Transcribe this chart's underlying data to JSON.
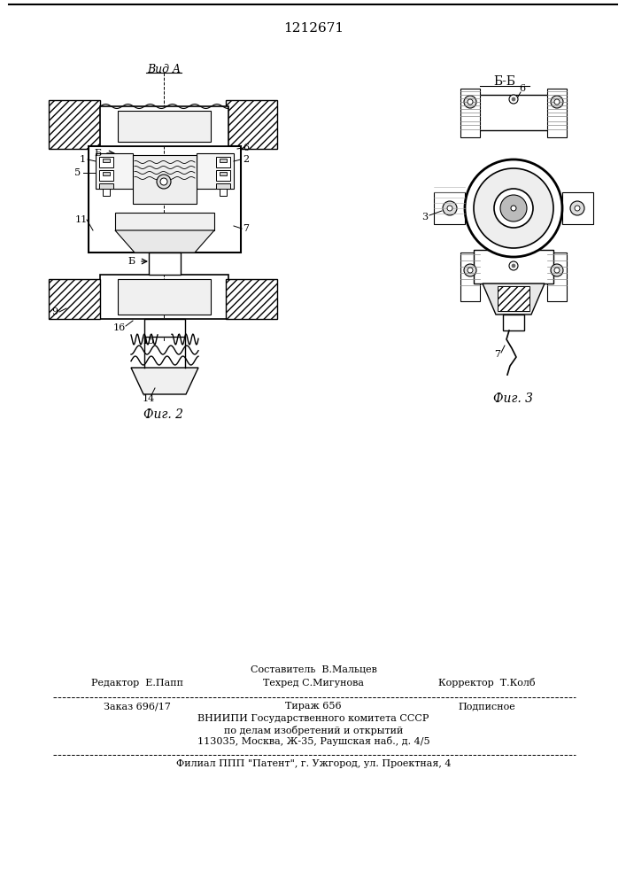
{
  "patent_number": "1212671",
  "background_color": "#ffffff",
  "text_color": "#000000",
  "fig2_caption": "Фиг. 2",
  "fig3_caption": "Фиг. 3",
  "view_a_label": "Вид A",
  "bb_label": "Б-Б",
  "footer_composer": "Составитель  В.Мальцев",
  "footer_line1_left": "Редактор  Е.Папп",
  "footer_line1_center": "Техред С.Мигунова",
  "footer_line1_right": "Корректор  Т.Колб",
  "footer_line2_left": "Заказ 696/17",
  "footer_line2_center": "Тираж 656",
  "footer_line2_right": "Подписное",
  "footer_line3": "ВНИИПИ Государственного комитета СССР",
  "footer_line4": "по делам изобретений и открытий",
  "footer_line5": "113035, Москва, Ж-35, Раушская наб., д. 4/5",
  "footer_line6": "Филиал ППП \"Патент\", г. Ужгород, ул. Проектная, 4"
}
